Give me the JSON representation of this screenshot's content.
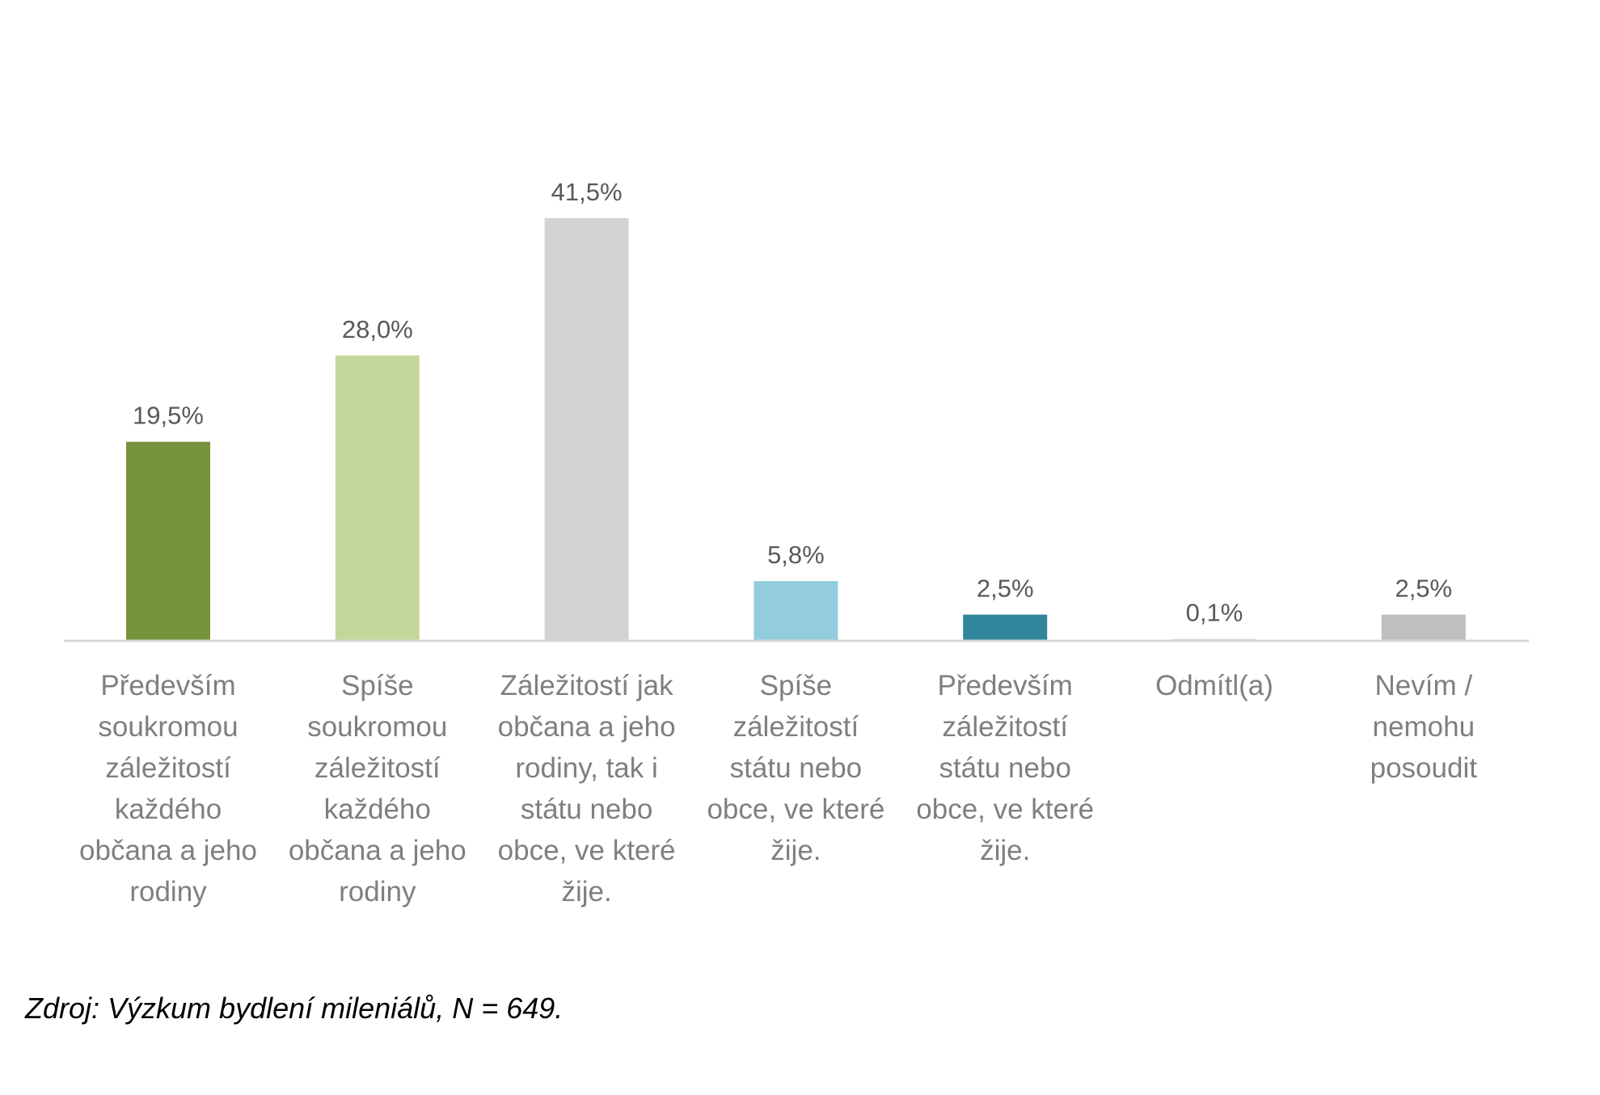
{
  "chart_data": {
    "type": "bar",
    "categories": [
      [
        "Především",
        "soukromou",
        "záležitostí",
        "každého",
        "občana a jeho",
        "rodiny"
      ],
      [
        "Spíše",
        "soukromou",
        "záležitostí",
        "každého",
        "občana a jeho",
        "rodiny"
      ],
      [
        "Záležitostí jak",
        "občana a jeho",
        "rodiny, tak i",
        "státu nebo",
        "obce, ve které",
        "žije."
      ],
      [
        "Spíše",
        "záležitostí",
        "státu nebo",
        "obce, ve které",
        "žije."
      ],
      [
        "Především",
        "záležitostí",
        "státu nebo",
        "obce, ve které",
        "žije."
      ],
      [
        "Odmítl(a)"
      ],
      [
        "Nevím /",
        "nemohu",
        "posoudit"
      ]
    ],
    "values": [
      19.5,
      28.0,
      41.5,
      5.8,
      2.5,
      0.1,
      2.5
    ],
    "value_labels": [
      "19,5%",
      "28,0%",
      "41,5%",
      "5,8%",
      "2,5%",
      "0,1%",
      "2,5%"
    ],
    "colors": [
      "#77933c",
      "#c4d79b",
      "#d3d3d3",
      "#93cddd",
      "#31859c",
      "#d3d3d3",
      "#bfbfbf"
    ],
    "ylim": [
      0,
      41.5
    ],
    "grid": false,
    "legend": "none"
  },
  "source_note": "Zdroj: Výzkum bydlení mileniálů, N = 649."
}
